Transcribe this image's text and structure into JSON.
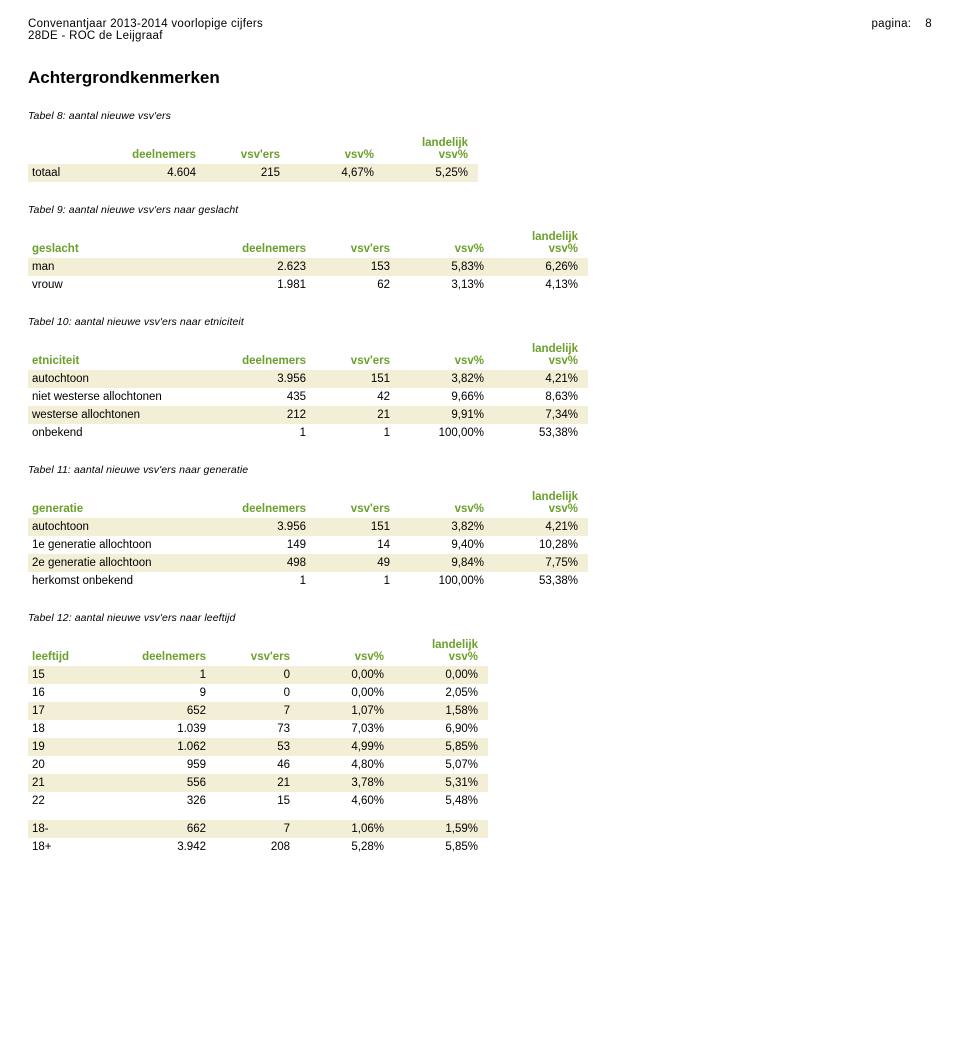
{
  "header": {
    "title": "Convenantjaar 2013-2014 voorlopige cijfers",
    "subtitle": "28DE - ROC de Leijgraaf",
    "page_label": "pagina:",
    "page_num": "8"
  },
  "section_title": "Achtergrondkenmerken",
  "colors": {
    "header_text": "#6ca02c",
    "stripe_bg": "#f3eed6",
    "background": "#ffffff",
    "text": "#000000"
  },
  "tables": {
    "t8": {
      "caption": "Tabel 8: aantal nieuwe vsv'ers",
      "columns": [
        "",
        "deelnemers",
        "vsv'ers",
        "vsv%",
        "landelijk vsv%"
      ],
      "rows": [
        [
          "totaal",
          "4.604",
          "215",
          "4,67%",
          "5,25%"
        ]
      ]
    },
    "t9": {
      "caption": "Tabel 9: aantal nieuwe vsv'ers naar geslacht",
      "columns": [
        "geslacht",
        "deelnemers",
        "vsv'ers",
        "vsv%",
        "landelijk vsv%"
      ],
      "rows": [
        [
          "man",
          "2.623",
          "153",
          "5,83%",
          "6,26%"
        ],
        [
          "vrouw",
          "1.981",
          "62",
          "3,13%",
          "4,13%"
        ]
      ]
    },
    "t10": {
      "caption": "Tabel 10: aantal nieuwe vsv'ers naar etniciteit",
      "columns": [
        "etniciteit",
        "deelnemers",
        "vsv'ers",
        "vsv%",
        "landelijk vsv%"
      ],
      "rows": [
        [
          "autochtoon",
          "3.956",
          "151",
          "3,82%",
          "4,21%"
        ],
        [
          "niet westerse allochtonen",
          "435",
          "42",
          "9,66%",
          "8,63%"
        ],
        [
          "westerse allochtonen",
          "212",
          "21",
          "9,91%",
          "7,34%"
        ],
        [
          "onbekend",
          "1",
          "1",
          "100,00%",
          "53,38%"
        ]
      ]
    },
    "t11": {
      "caption": "Tabel 11: aantal nieuwe vsv'ers naar generatie",
      "columns": [
        "generatie",
        "deelnemers",
        "vsv'ers",
        "vsv%",
        "landelijk vsv%"
      ],
      "rows": [
        [
          "autochtoon",
          "3.956",
          "151",
          "3,82%",
          "4,21%"
        ],
        [
          "1e generatie allochtoon",
          "149",
          "14",
          "9,40%",
          "10,28%"
        ],
        [
          "2e generatie allochtoon",
          "498",
          "49",
          "9,84%",
          "7,75%"
        ],
        [
          "herkomst onbekend",
          "1",
          "1",
          "100,00%",
          "53,38%"
        ]
      ]
    },
    "t12": {
      "caption": "Tabel 12: aantal nieuwe vsv'ers naar leeftijd",
      "columns": [
        "leeftijd",
        "deelnemers",
        "vsv'ers",
        "vsv%",
        "landelijk vsv%"
      ],
      "rows": [
        [
          "15",
          "1",
          "0",
          "0,00%",
          "0,00%"
        ],
        [
          "16",
          "9",
          "0",
          "0,00%",
          "2,05%"
        ],
        [
          "17",
          "652",
          "7",
          "1,07%",
          "1,58%"
        ],
        [
          "18",
          "1.039",
          "73",
          "7,03%",
          "6,90%"
        ],
        [
          "19",
          "1.062",
          "53",
          "4,99%",
          "5,85%"
        ],
        [
          "20",
          "959",
          "46",
          "4,80%",
          "5,07%"
        ],
        [
          "21",
          "556",
          "21",
          "3,78%",
          "5,31%"
        ],
        [
          "22",
          "326",
          "15",
          "4,60%",
          "5,48%"
        ]
      ],
      "summary_rows": [
        [
          "18-",
          "662",
          "7",
          "1,06%",
          "1,59%"
        ],
        [
          "18+",
          "3.942",
          "208",
          "5,28%",
          "5,85%"
        ]
      ]
    }
  },
  "layout": {
    "col_widths_default": [
      170,
      90,
      70,
      80,
      80
    ],
    "col_widths_t12": [
      70,
      90,
      70,
      80,
      80
    ],
    "col_widths_t8": [
      60,
      90,
      70,
      80,
      80
    ]
  }
}
